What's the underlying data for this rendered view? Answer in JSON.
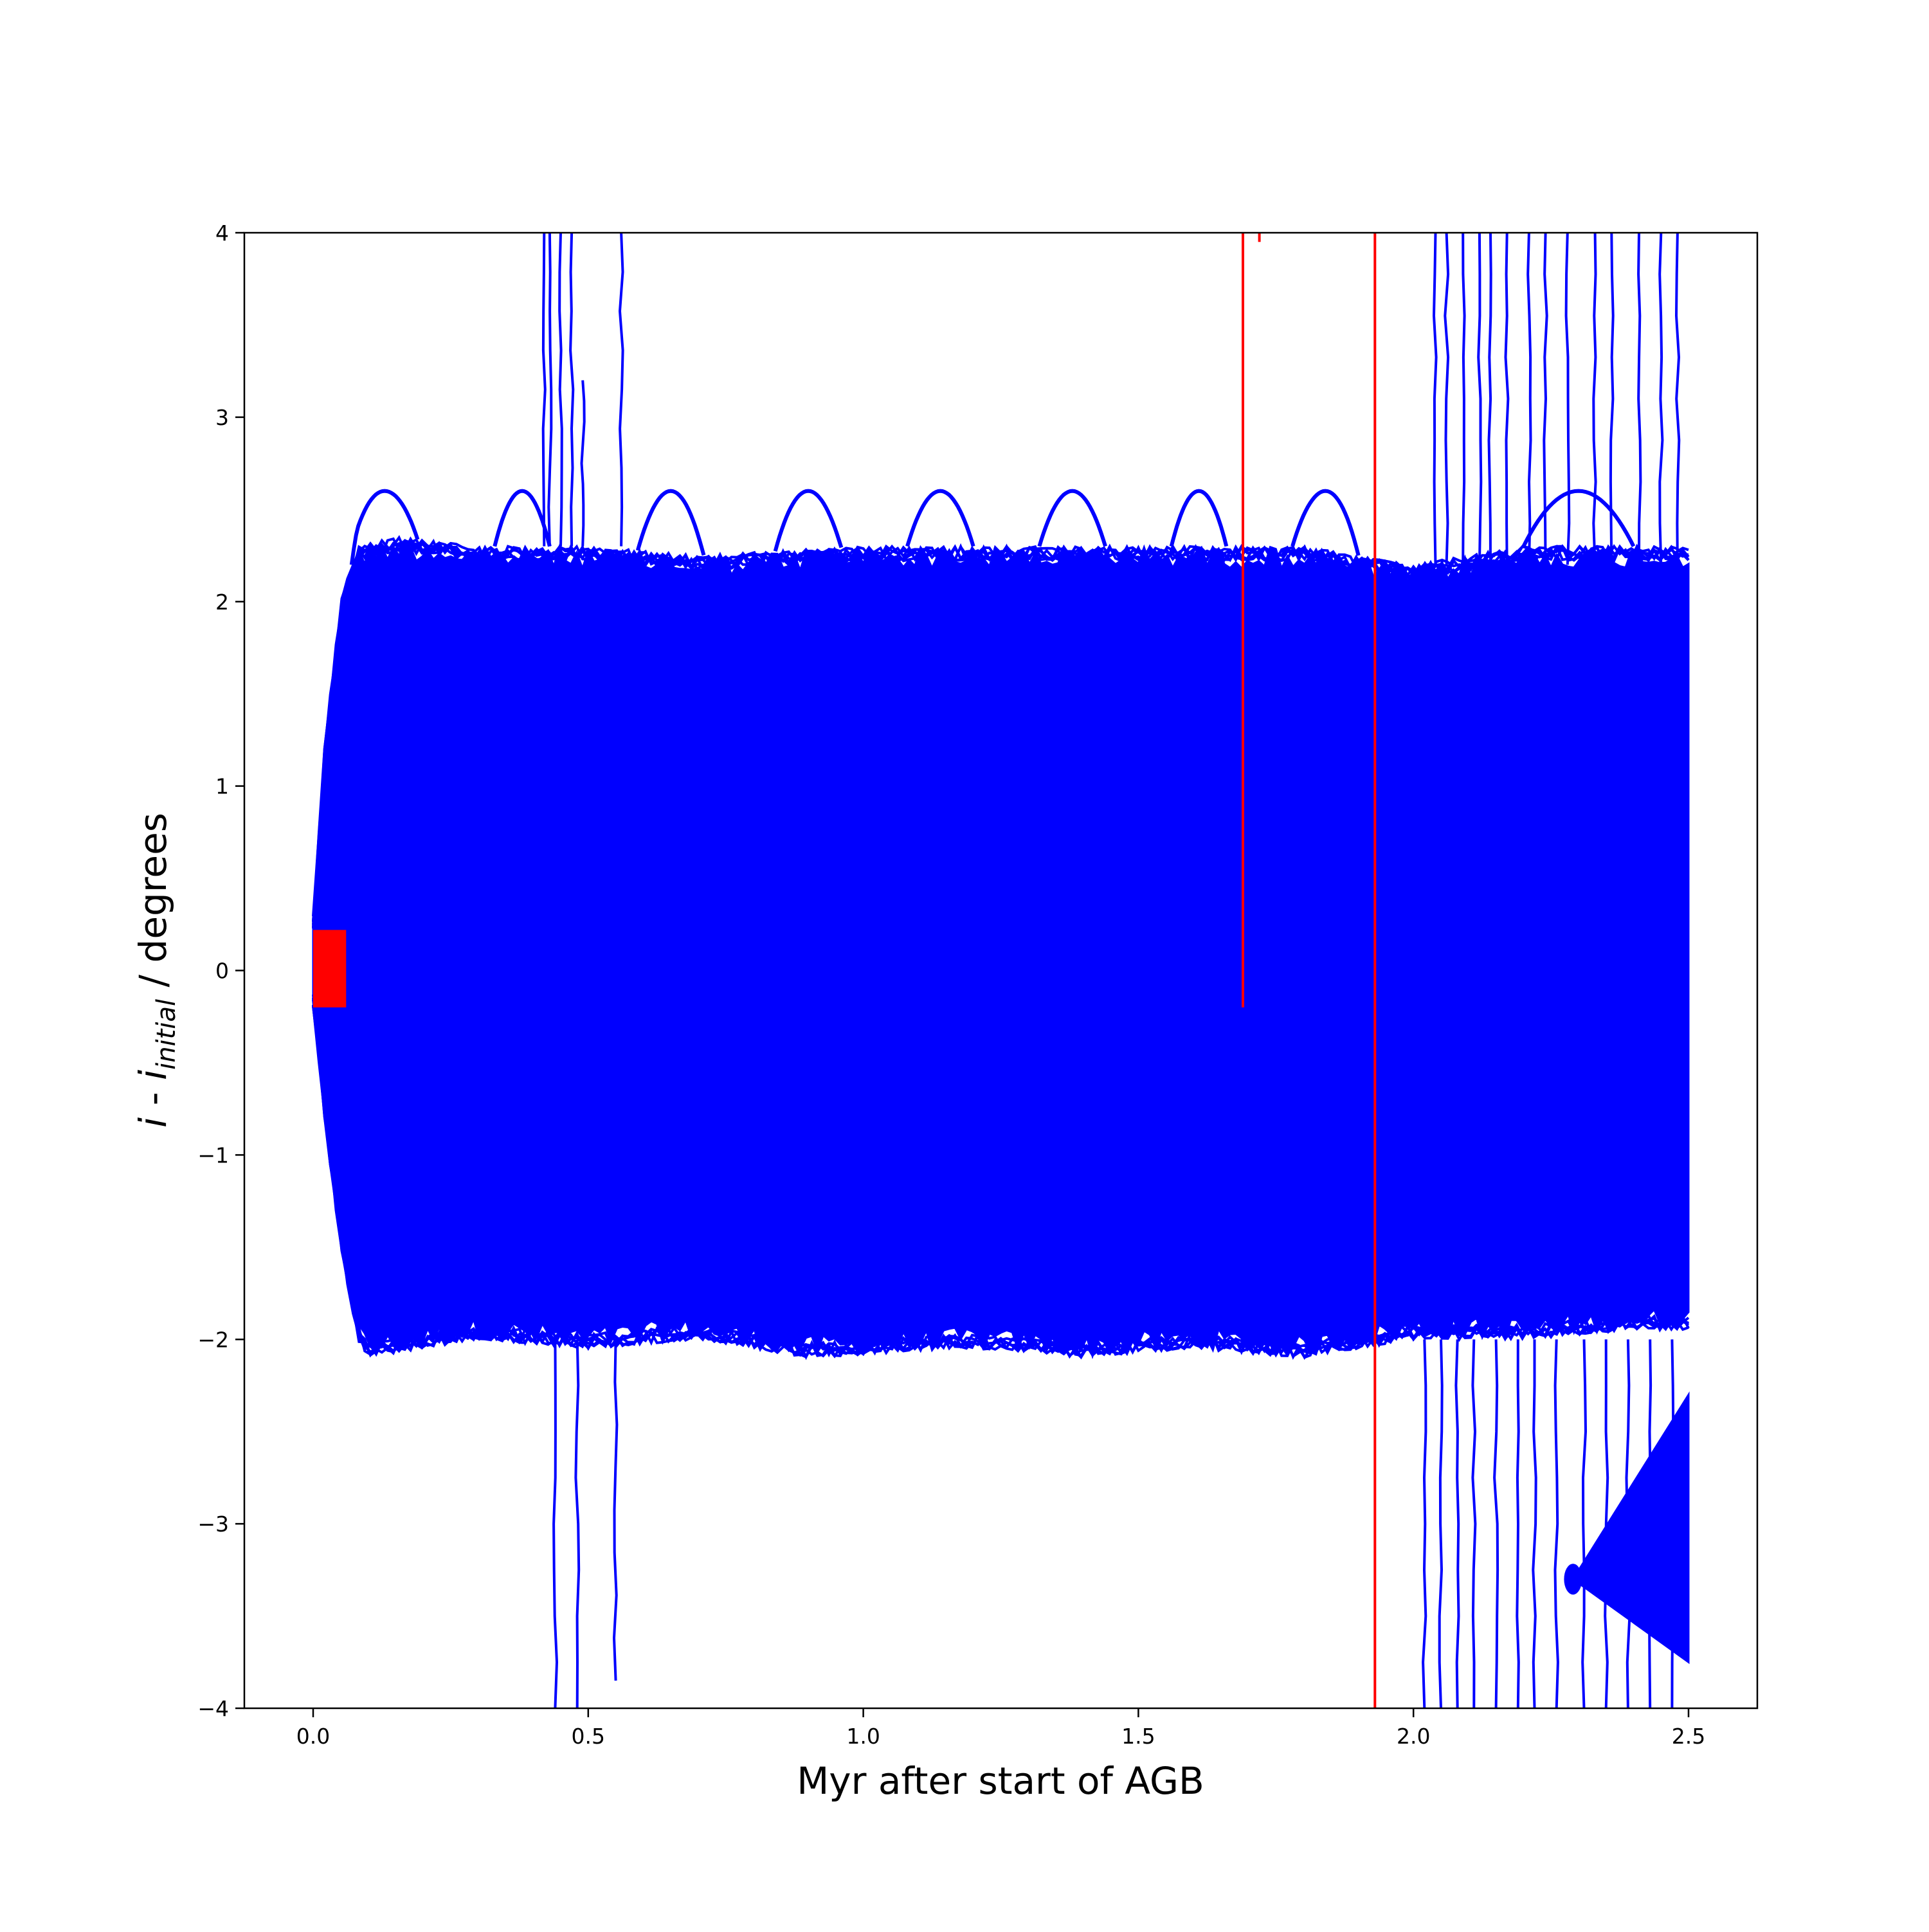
{
  "chart_data": {
    "type": "line",
    "title": "",
    "xlabel": "Myr after start of AGB",
    "ylabel": {
      "var": "i",
      "sep": " - ",
      "sym": "i",
      "sub": "initial",
      "unit": " / degrees"
    },
    "xlim": [
      -0.125,
      2.625
    ],
    "ylim": [
      -4,
      4
    ],
    "xticks": [
      0.0,
      0.5,
      1.0,
      1.5,
      2.0,
      2.5
    ],
    "xtick_labels": [
      "0.0",
      "0.5",
      "1.0",
      "1.5",
      "2.0",
      "2.5"
    ],
    "yticks": [
      -4,
      -3,
      -2,
      -1,
      0,
      1,
      2,
      3,
      4
    ],
    "ytick_labels": [
      "−4",
      "−3",
      "−2",
      "−1",
      "0",
      "1",
      "2",
      "3",
      "4"
    ],
    "grid": false,
    "legend": "none",
    "colors": {
      "blue_series": "#0000ff",
      "red_series": "#ff0000"
    },
    "band": {
      "x_start": 0.0,
      "x_end": 2.5,
      "upper_envelope": [
        [
          0.0,
          0.3
        ],
        [
          0.02,
          1.2
        ],
        [
          0.05,
          2.0
        ],
        [
          0.08,
          2.3
        ],
        [
          0.15,
          2.35
        ],
        [
          0.3,
          2.3
        ],
        [
          0.5,
          2.3
        ],
        [
          0.7,
          2.25
        ],
        [
          1.0,
          2.3
        ],
        [
          1.2,
          2.3
        ],
        [
          1.4,
          2.3
        ],
        [
          1.6,
          2.3
        ],
        [
          1.8,
          2.3
        ],
        [
          2.0,
          2.2
        ],
        [
          2.2,
          2.3
        ],
        [
          2.4,
          2.3
        ],
        [
          2.5,
          2.3
        ]
      ],
      "lower_envelope": [
        [
          0.0,
          -0.2
        ],
        [
          0.02,
          -0.8
        ],
        [
          0.05,
          -1.5
        ],
        [
          0.08,
          -2.0
        ],
        [
          0.1,
          -2.1
        ],
        [
          0.3,
          -2.0
        ],
        [
          0.5,
          -2.05
        ],
        [
          0.7,
          -2.0
        ],
        [
          0.9,
          -2.1
        ],
        [
          1.2,
          -2.05
        ],
        [
          1.4,
          -2.1
        ],
        [
          1.6,
          -2.05
        ],
        [
          1.8,
          -2.1
        ],
        [
          2.0,
          -2.0
        ],
        [
          2.2,
          -2.0
        ],
        [
          2.4,
          -1.95
        ],
        [
          2.5,
          -1.95
        ]
      ],
      "arches": [
        {
          "center": 0.13,
          "peak": 2.6,
          "half_width": 0.06
        },
        {
          "center": 0.38,
          "peak": 2.6,
          "half_width": 0.05
        },
        {
          "center": 0.65,
          "peak": 2.6,
          "half_width": 0.06
        },
        {
          "center": 0.9,
          "peak": 2.6,
          "half_width": 0.06
        },
        {
          "center": 1.14,
          "peak": 2.6,
          "half_width": 0.06
        },
        {
          "center": 1.38,
          "peak": 2.6,
          "half_width": 0.06
        },
        {
          "center": 1.61,
          "peak": 2.6,
          "half_width": 0.05
        },
        {
          "center": 1.84,
          "peak": 2.6,
          "half_width": 0.06
        },
        {
          "center": 2.3,
          "peak": 2.6,
          "half_width": 0.1
        }
      ]
    },
    "blue_spikes": [
      {
        "x": 0.42,
        "y_from": 2.3,
        "y_to": 4.0
      },
      {
        "x": 0.43,
        "y_from": 2.3,
        "y_to": 4.0
      },
      {
        "x": 0.45,
        "y_from": 2.3,
        "y_to": 4.0
      },
      {
        "x": 0.47,
        "y_from": 2.3,
        "y_to": 4.0
      },
      {
        "x": 0.49,
        "y_from": 2.3,
        "y_to": 3.2
      },
      {
        "x": 0.56,
        "y_from": 2.3,
        "y_to": 4.0
      },
      {
        "x": 0.44,
        "y_from": -2.0,
        "y_to": -4.0
      },
      {
        "x": 0.48,
        "y_from": -2.0,
        "y_to": -4.0
      },
      {
        "x": 0.55,
        "y_from": -2.0,
        "y_to": -3.85
      },
      {
        "x": 2.04,
        "y_from": 2.2,
        "y_to": 4.0
      },
      {
        "x": 2.06,
        "y_from": 2.2,
        "y_to": 4.0
      },
      {
        "x": 2.09,
        "y_from": 2.2,
        "y_to": 4.0
      },
      {
        "x": 2.12,
        "y_from": 2.2,
        "y_to": 4.0
      },
      {
        "x": 2.14,
        "y_from": 2.2,
        "y_to": 4.0
      },
      {
        "x": 2.17,
        "y_from": 2.2,
        "y_to": 4.0
      },
      {
        "x": 2.21,
        "y_from": 2.2,
        "y_to": 4.0
      },
      {
        "x": 2.24,
        "y_from": 2.2,
        "y_to": 4.0
      },
      {
        "x": 2.28,
        "y_from": 2.2,
        "y_to": 4.0
      },
      {
        "x": 2.33,
        "y_from": 2.2,
        "y_to": 4.0
      },
      {
        "x": 2.36,
        "y_from": 2.2,
        "y_to": 4.0
      },
      {
        "x": 2.41,
        "y_from": 2.2,
        "y_to": 4.0
      },
      {
        "x": 2.45,
        "y_from": 2.2,
        "y_to": 4.0
      },
      {
        "x": 2.48,
        "y_from": 2.2,
        "y_to": 4.0
      },
      {
        "x": 2.02,
        "y_from": -2.0,
        "y_to": -4.0
      },
      {
        "x": 2.05,
        "y_from": -2.0,
        "y_to": -4.0
      },
      {
        "x": 2.08,
        "y_from": -2.0,
        "y_to": -4.0
      },
      {
        "x": 2.11,
        "y_from": -2.0,
        "y_to": -4.0
      },
      {
        "x": 2.15,
        "y_from": -2.0,
        "y_to": -4.0
      },
      {
        "x": 2.19,
        "y_from": -2.0,
        "y_to": -4.0
      },
      {
        "x": 2.22,
        "y_from": -2.0,
        "y_to": -4.0
      },
      {
        "x": 2.26,
        "y_from": -2.0,
        "y_to": -4.0
      },
      {
        "x": 2.31,
        "y_from": -2.0,
        "y_to": -4.0
      },
      {
        "x": 2.35,
        "y_from": -2.0,
        "y_to": -4.0
      },
      {
        "x": 2.39,
        "y_from": -2.0,
        "y_to": -4.0
      },
      {
        "x": 2.43,
        "y_from": -2.0,
        "y_to": -4.0
      },
      {
        "x": 2.47,
        "y_from": -2.0,
        "y_to": -4.0
      }
    ],
    "blue_wedge": {
      "tip": [
        2.29,
        -3.3
      ],
      "end_x": 2.5,
      "end_y_top": -2.3,
      "end_y_bottom": -3.75
    },
    "red_series": [
      {
        "x": 1.69,
        "y_from": -0.2,
        "y_to": 4.0
      },
      {
        "x": 1.93,
        "y_from": -4.0,
        "y_to": 4.0
      },
      {
        "x": 1.72,
        "y_from": 3.95,
        "y_to": 4.0
      }
    ],
    "red_start_region": {
      "x_from": 0.0,
      "x_to": 0.06,
      "y_from": -0.2,
      "y_to": 0.22
    }
  }
}
